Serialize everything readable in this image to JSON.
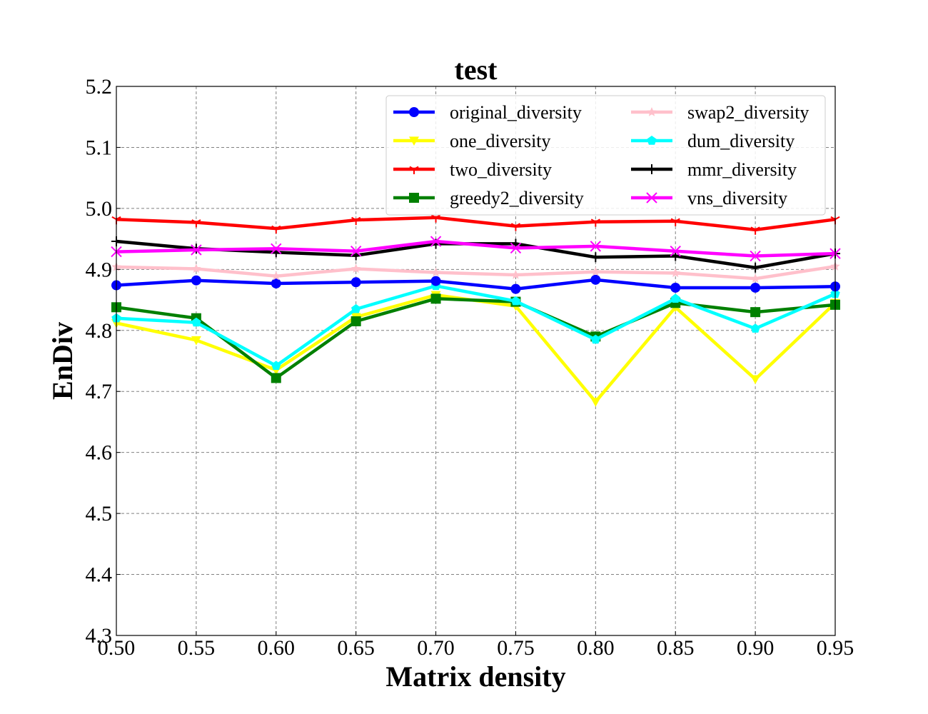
{
  "chart_data": {
    "type": "line",
    "title": "test",
    "xlabel": "Matrix density",
    "ylabel": "EnDiv",
    "xlim": [
      0.5,
      0.95
    ],
    "ylim": [
      4.3,
      5.2
    ],
    "x": [
      0.5,
      0.55,
      0.6,
      0.65,
      0.7,
      0.75,
      0.8,
      0.85,
      0.9,
      0.95
    ],
    "x_tick_labels": [
      "0.50",
      "0.55",
      "0.60",
      "0.65",
      "0.70",
      "0.75",
      "0.80",
      "0.85",
      "0.90",
      "0.95"
    ],
    "y_ticks": [
      4.3,
      4.4,
      4.5,
      4.6,
      4.7,
      4.8,
      4.9,
      5.0,
      5.1,
      5.2
    ],
    "y_tick_labels": [
      "4.3",
      "4.4",
      "4.5",
      "4.6",
      "4.7",
      "4.8",
      "4.9",
      "5.0",
      "5.1",
      "5.2"
    ],
    "grid": true,
    "legend_position": "top-right",
    "series": [
      {
        "name": "original_diversity",
        "color": "#0000ff",
        "marker": "circle",
        "values": [
          4.874,
          4.882,
          4.877,
          4.879,
          4.881,
          4.868,
          4.883,
          4.87,
          4.87,
          4.872
        ]
      },
      {
        "name": "one_diversity",
        "color": "#ffff00",
        "marker": "triangle-down",
        "values": [
          4.812,
          4.784,
          4.735,
          4.822,
          4.858,
          4.84,
          4.683,
          4.838,
          4.72,
          4.845
        ]
      },
      {
        "name": "two_diversity",
        "color": "#ff0000",
        "marker": "tri-down",
        "values": [
          4.982,
          4.977,
          4.967,
          4.981,
          4.985,
          4.971,
          4.978,
          4.979,
          4.965,
          4.982
        ]
      },
      {
        "name": "greedy2_diversity",
        "color": "#008000",
        "marker": "square",
        "values": [
          4.838,
          4.82,
          4.722,
          4.815,
          4.852,
          4.847,
          4.79,
          4.845,
          4.83,
          4.842
        ]
      },
      {
        "name": "swap2_diversity",
        "color": "#ffc0cb",
        "marker": "star",
        "values": [
          4.904,
          4.901,
          4.889,
          4.901,
          4.895,
          4.891,
          4.896,
          4.894,
          4.885,
          4.905
        ]
      },
      {
        "name": "dum_diversity",
        "color": "#00ffff",
        "marker": "pentagon",
        "values": [
          4.82,
          4.813,
          4.742,
          4.835,
          4.873,
          4.848,
          4.785,
          4.852,
          4.803,
          4.86
        ]
      },
      {
        "name": "mmr_diversity",
        "color": "#000000",
        "marker": "plus",
        "values": [
          4.946,
          4.934,
          4.928,
          4.923,
          4.942,
          4.942,
          4.92,
          4.922,
          4.903,
          4.926
        ]
      },
      {
        "name": "vns_diversity",
        "color": "#ff00ff",
        "marker": "x",
        "values": [
          4.929,
          4.932,
          4.934,
          4.93,
          4.946,
          4.935,
          4.938,
          4.93,
          4.922,
          4.926
        ]
      }
    ]
  }
}
